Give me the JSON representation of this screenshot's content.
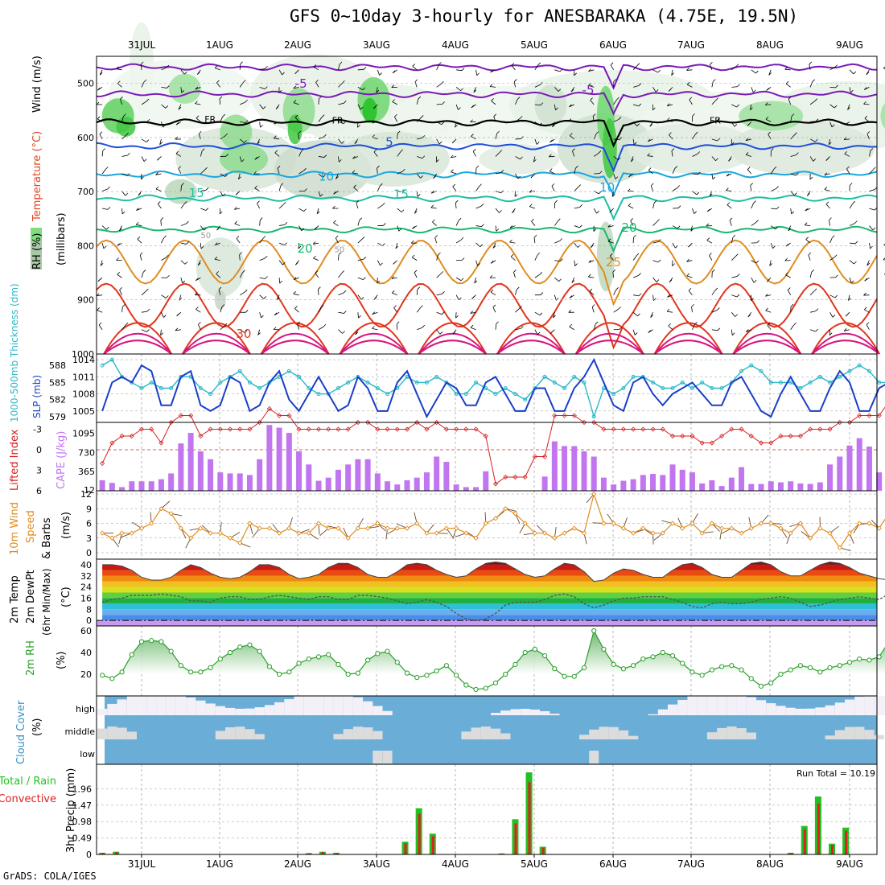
{
  "title": "GFS 0~10day 3-hourly for ANESBARAKA (4.75E, 19.5N)",
  "credit": "GrADS: COLA/IGES",
  "run_total_text": "Run Total = 10.19",
  "colors": {
    "rh_green": "#7fdc7f",
    "rh_gray": "#b8c8b8",
    "temp_purple": "#7a19b8",
    "temp_blue": "#1e4fd8",
    "temp_cyan": "#1aa6e0",
    "temp_teal": "#1dbfa6",
    "temp_green": "#18b870",
    "temp_orange": "#e08c1e",
    "temp_red": "#e0351e",
    "temp_magenta": "#d6167e",
    "freeze": "#000000",
    "slp": "#1a3fc8",
    "thickness": "#2ab8c8",
    "cape": "#c176f0",
    "lifted": "#d62020",
    "wind": "#e08c1e",
    "cloud_blue": "#6aaed8",
    "cloud_white": "#f4f0f8",
    "cloud_gray": "#dcdcdc",
    "rain_green": "#22c022",
    "rain_red": "#e02020",
    "rh2m": "#2a9e2a"
  },
  "chart_data": [
    {
      "id": "cross_section",
      "type": "heatmap",
      "title": "GFS 0~10day 3-hourly for ANESBARAKA (4.75E, 19.5N)",
      "ylabel_parts": [
        "RH (%)",
        "Temperature (°C)",
        "Wind (m/s)"
      ],
      "ylabel_units": "(millibars)",
      "x_dates": [
        "31JUL",
        "1AUG",
        "2AUG",
        "3AUG",
        "4AUG",
        "5AUG",
        "6AUG",
        "7AUG",
        "8AUG",
        "9AUG"
      ],
      "y_ticks": [
        500,
        600,
        700,
        800,
        900,
        1000
      ],
      "ylim": [
        1000,
        450
      ],
      "isotherm_labels": [
        {
          "text": "-5",
          "t": 1.95,
          "p": 508
        },
        {
          "text": "-5",
          "t": 5.6,
          "p": 520
        },
        {
          "text": "FR",
          "t": 0.8,
          "p": 572
        },
        {
          "text": "FR",
          "t": 2.42,
          "p": 574
        },
        {
          "text": "FR",
          "t": 7.22,
          "p": 574
        },
        {
          "text": "5",
          "t": 3.1,
          "p": 616
        },
        {
          "text": "10",
          "t": 2.25,
          "p": 680
        },
        {
          "text": "10",
          "t": 5.82,
          "p": 700
        },
        {
          "text": "15",
          "t": 0.6,
          "p": 710
        },
        {
          "text": "15",
          "t": 3.2,
          "p": 712
        },
        {
          "text": "20",
          "t": 1.98,
          "p": 813
        },
        {
          "text": "20",
          "t": 6.1,
          "p": 774
        },
        {
          "text": "25",
          "t": 5.9,
          "p": 838
        },
        {
          "text": "30",
          "t": 1.2,
          "p": 970
        }
      ],
      "rh_labels": [
        {
          "text": "50",
          "t": 0.75,
          "p": 786
        },
        {
          "text": "50",
          "t": 2.45,
          "p": 812
        }
      ],
      "isotherms": [
        {
          "level": "-10",
          "color": "#7a19b8",
          "p_mean": 470
        },
        {
          "level": "-5",
          "color": "#7a19b8",
          "p_mean": 520
        },
        {
          "level": "FR",
          "color": "#000000",
          "p_mean": 572
        },
        {
          "level": "5",
          "color": "#1e4fd8",
          "p_mean": 616
        },
        {
          "level": "10",
          "color": "#1aa6e0",
          "p_mean": 668
        },
        {
          "level": "15",
          "color": "#1dbfa6",
          "p_mean": 712
        },
        {
          "level": "20",
          "color": "#18b870",
          "p_mean": 770
        },
        {
          "level": "25",
          "color": "#e08c1e",
          "p_mean": 830
        },
        {
          "level": "30",
          "color": "#e0351e",
          "p_mean": 910
        }
      ]
    },
    {
      "id": "slp_thickness",
      "type": "line",
      "ylabel_left": "1000-500mb Thickness (dm)",
      "ylabel_right": "SLP (mb)",
      "left_ticks": [
        579,
        582,
        585,
        588
      ],
      "right_ticks": [
        1005,
        1008,
        1011,
        1014
      ],
      "slp_ylim": [
        1003,
        1015
      ],
      "thick_ylim": [
        578,
        590
      ],
      "series": [
        {
          "name": "SLP (mb)",
          "values": [
            1005,
            1010,
            1011,
            1010,
            1013,
            1012,
            1006,
            1006,
            1011,
            1012,
            1006,
            1005,
            1006,
            1011,
            1010,
            1005,
            1006,
            1010,
            1012,
            1007,
            1005,
            1008,
            1011,
            1008,
            1005,
            1006,
            1011,
            1009,
            1005,
            1005,
            1010,
            1012,
            1008,
            1004,
            1007,
            1010,
            1009,
            1006,
            1006,
            1010,
            1011,
            1008,
            1005,
            1005,
            1009,
            1009,
            1005,
            1005,
            1009,
            1011,
            1014,
            1010,
            1006,
            1005,
            1010,
            1011,
            1008,
            1006,
            1008,
            1009,
            1010,
            1008,
            1006,
            1006,
            1010,
            1011,
            1008,
            1005,
            1004,
            1008,
            1011,
            1008,
            1005,
            1005,
            1009,
            1012,
            1010,
            1005,
            1005,
            1009,
            1010
          ]
        },
        {
          "name": "Thickness (dm)",
          "values": [
            588,
            589,
            586,
            585,
            584,
            585,
            584,
            584,
            586,
            586,
            584,
            583,
            585,
            586,
            587,
            585,
            584,
            585,
            586,
            587,
            586,
            584,
            583,
            583,
            584,
            585,
            586,
            585,
            584,
            583,
            584,
            586,
            585,
            585,
            586,
            585,
            583,
            583,
            585,
            584,
            583,
            584,
            583,
            582,
            584,
            586,
            585,
            584,
            586,
            585,
            579,
            584,
            583,
            584,
            586,
            586,
            585,
            584,
            584,
            585,
            584,
            585,
            584,
            584,
            585,
            587,
            588,
            587,
            585,
            585,
            585,
            584,
            585,
            586,
            585,
            586,
            587,
            588,
            587,
            585,
            585
          ]
        }
      ]
    },
    {
      "id": "cape_lifted",
      "type": "bar",
      "ylabel_left": "Lifted Index",
      "ylabel_right": "CAPE (J/kg)",
      "left_ticks": [
        "-3",
        "0",
        "3",
        "6"
      ],
      "right_ticks": [
        12,
        365,
        730,
        1095
      ],
      "series": [
        {
          "name": "CAPE (J/kg)",
          "values": [
            200,
            150,
            70,
            180,
            180,
            180,
            220,
            330,
            900,
            1100,
            750,
            600,
            350,
            330,
            330,
            300,
            600,
            1250,
            1200,
            1100,
            750,
            500,
            190,
            250,
            400,
            500,
            600,
            600,
            330,
            180,
            120,
            200,
            250,
            350,
            650,
            550,
            120,
            70,
            70,
            370,
            0,
            0,
            0,
            0,
            0,
            270,
            940,
            850,
            850,
            750,
            650,
            250,
            120,
            190,
            220,
            300,
            320,
            300,
            500,
            400,
            350,
            140,
            200,
            90,
            250,
            450,
            130,
            130,
            180,
            160,
            180,
            140,
            130,
            160,
            500,
            650,
            860,
            1000,
            840,
            350,
            1250
          ]
        },
        {
          "name": "Lifted Index",
          "values": [
            2,
            -1,
            -2,
            -2,
            -3,
            -3,
            -1,
            -4,
            -5,
            -5,
            -2,
            -3,
            -3,
            -3,
            -3,
            -3,
            -4,
            -6,
            -5,
            -5,
            -3,
            -3,
            -3,
            -3,
            -3,
            -3,
            -4,
            -4,
            -3,
            -3,
            -3,
            -3,
            -4,
            -3,
            -4,
            -3,
            -3,
            -3,
            -3,
            -2,
            5,
            4,
            4,
            4,
            1,
            1,
            -5,
            -5,
            -5,
            -4,
            -4,
            -3,
            -3,
            -3,
            -3,
            -3,
            -3,
            -3,
            -2,
            -2,
            -2,
            -1,
            -1,
            -2,
            -3,
            -3,
            -2,
            -1,
            -1,
            -2,
            -2,
            -2,
            -3,
            -3,
            -3,
            -4,
            -4,
            -5,
            -5,
            -5,
            -7
          ]
        }
      ]
    },
    {
      "id": "wind10m",
      "type": "line",
      "ylabel": "10m Wind Speed & Barbs (m/s)",
      "ylim": [
        0,
        12
      ],
      "ticks": [
        0,
        3,
        6,
        9,
        12
      ],
      "series": [
        {
          "name": "Speed",
          "values": [
            4,
            3,
            4,
            4,
            5,
            6,
            9,
            8,
            5,
            3,
            5,
            4,
            4,
            3,
            2,
            6,
            5,
            5,
            4,
            5,
            4,
            4,
            6,
            5,
            5,
            3,
            5,
            5,
            6,
            5,
            5,
            5,
            6,
            4,
            4,
            5,
            5,
            4,
            3,
            6,
            7,
            9,
            8,
            6,
            4,
            4,
            3,
            4,
            5,
            4,
            12,
            6,
            6,
            5,
            4,
            5,
            4,
            4,
            6,
            5,
            6,
            4,
            6,
            5,
            5,
            4,
            5,
            6,
            6,
            5,
            4,
            6,
            3,
            5,
            4,
            1,
            4,
            6,
            6,
            5,
            8
          ]
        }
      ]
    },
    {
      "id": "temp2m",
      "type": "area",
      "ylabel": "2m Temp 2m DewPt (6hr Min/Max) (°C)",
      "ylim": [
        -4,
        44
      ],
      "ticks": [
        0,
        8,
        16,
        24,
        32,
        40
      ],
      "series": [
        {
          "name": "2m Temp",
          "values": [
            40,
            40,
            39,
            36,
            31,
            29,
            29,
            31,
            36,
            40,
            38,
            34,
            31,
            30,
            31,
            35,
            40,
            40,
            38,
            33,
            30,
            31,
            33,
            38,
            41,
            41,
            38,
            33,
            31,
            31,
            35,
            40,
            41,
            40,
            36,
            33,
            31,
            32,
            37,
            41,
            42,
            41,
            37,
            33,
            31,
            32,
            37,
            41,
            40,
            35,
            28,
            29,
            34,
            37,
            36,
            33,
            31,
            31,
            36,
            40,
            41,
            38,
            33,
            31,
            31,
            36,
            41,
            42,
            40,
            35,
            32,
            32,
            36,
            40,
            42,
            41,
            38,
            34,
            32,
            30,
            29
          ]
        },
        {
          "name": "2m DewPt",
          "values": [
            13,
            15,
            16,
            18,
            18,
            18,
            19,
            18,
            17,
            14,
            14,
            13,
            16,
            17,
            17,
            15,
            15,
            17,
            18,
            17,
            16,
            15,
            17,
            17,
            15,
            15,
            18,
            18,
            17,
            16,
            14,
            12,
            13,
            15,
            13,
            10,
            5,
            1,
            0,
            1,
            5,
            11,
            13,
            13,
            13,
            15,
            18,
            19,
            17,
            12,
            9,
            11,
            14,
            16,
            16,
            17,
            17,
            17,
            15,
            13,
            10,
            9,
            12,
            13,
            12,
            12,
            13,
            15,
            16,
            17,
            16,
            13,
            10,
            11,
            13,
            15,
            16,
            17,
            16,
            15,
            19
          ]
        }
      ]
    },
    {
      "id": "rh2m",
      "type": "area",
      "ylabel": "2m RH (%)",
      "ylim": [
        0,
        60
      ],
      "ticks": [
        20,
        40,
        60
      ],
      "series": [
        {
          "name": "2m RH",
          "values": [
            19,
            16,
            22,
            38,
            50,
            51,
            50,
            41,
            28,
            22,
            22,
            26,
            34,
            40,
            45,
            47,
            41,
            27,
            20,
            22,
            30,
            34,
            36,
            38,
            29,
            20,
            21,
            33,
            39,
            41,
            31,
            21,
            17,
            19,
            23,
            28,
            19,
            10,
            6,
            7,
            12,
            20,
            29,
            40,
            43,
            37,
            25,
            18,
            18,
            26,
            60,
            43,
            29,
            25,
            28,
            34,
            36,
            40,
            37,
            30,
            22,
            19,
            24,
            27,
            28,
            24,
            16,
            9,
            12,
            20,
            24,
            28,
            26,
            22,
            26,
            28,
            31,
            34,
            33,
            36,
            50
          ]
        }
      ]
    },
    {
      "id": "cloud_cover",
      "type": "heatmap",
      "ylabel": "Cloud Cover (%)",
      "rows": [
        "high",
        "middle",
        "low"
      ],
      "note": "blue = clear, white = high cloud, gray = middle/low cloud"
    },
    {
      "id": "precip",
      "type": "bar",
      "ylabel": "3hr Precip (mm)",
      "legend": [
        "Total / Rain",
        "Convective"
      ],
      "ylim": [
        0,
        2.45
      ],
      "ticks": [
        0,
        0.49,
        0.98,
        1.47,
        1.96
      ],
      "run_total": 10.19,
      "series": [
        {
          "name": "Total / Rain",
          "values": [
            0.05,
            0.08,
            0,
            0,
            0,
            0,
            0,
            0,
            0,
            0,
            0,
            0,
            0,
            0,
            0,
            0.04,
            0.08,
            0.05,
            0,
            0,
            0,
            0,
            0.38,
            1.38,
            0.62,
            0,
            0,
            0,
            0,
            0.03,
            1.05,
            2.45,
            0.23,
            0,
            0,
            0,
            0,
            0,
            0,
            0,
            0,
            0,
            0,
            0,
            0,
            0,
            0,
            0,
            0,
            0,
            0.05,
            0.85,
            1.73,
            0.32,
            0.8,
            0,
            0
          ]
        },
        {
          "name": "Convective",
          "values": [
            0.05,
            0.08,
            0,
            0,
            0,
            0,
            0,
            0,
            0,
            0,
            0,
            0,
            0,
            0,
            0,
            0.04,
            0.08,
            0.05,
            0,
            0,
            0,
            0,
            0.38,
            1.38,
            0.62,
            0,
            0,
            0,
            0,
            0.03,
            1.05,
            2.45,
            0.23,
            0,
            0,
            0,
            0,
            0,
            0,
            0,
            0,
            0,
            0,
            0,
            0,
            0,
            0,
            0,
            0,
            0,
            0.05,
            0.85,
            1.73,
            0.32,
            0.8,
            0,
            0
          ]
        }
      ]
    }
  ]
}
